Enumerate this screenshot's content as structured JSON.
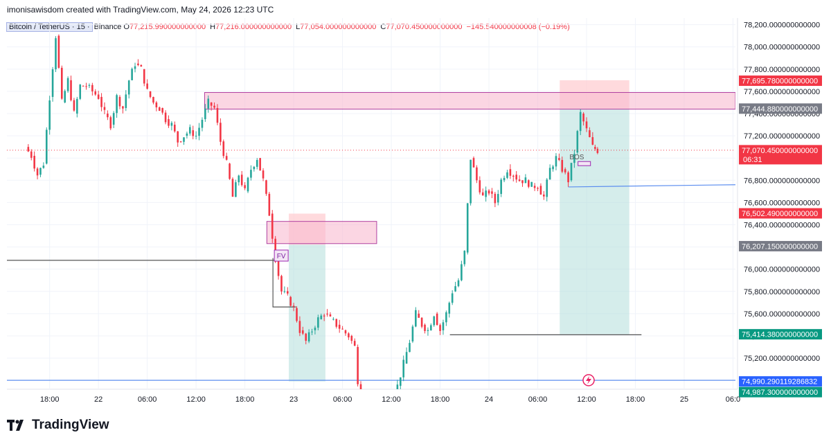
{
  "header": {
    "text": "imonisawisdom created with TradingView.com, May 24, 2026 12:23 UTC"
  },
  "legend": {
    "symbol": "Bitcoin / TetherUS · 15 ·",
    "exchange": "Binance",
    "open_label": "O",
    "open": "77,215.990000000000",
    "high_label": "H",
    "high": "77,216.000000000000",
    "low_label": "L",
    "low": "77,054.000000000000",
    "close_label": "C",
    "close": "77,070.450000000000",
    "change": "−145.540000000008 (−0.19%)"
  },
  "logo": {
    "text": "TradingView"
  },
  "colors": {
    "up": "#26a69a",
    "down": "#f23645",
    "supply_zone": "#f8bbd0",
    "profit_zone": "#b2dfdb",
    "loss_zone": "#ffcdd2",
    "blue_line": "#5b8def",
    "grid": "#f0f3fa"
  },
  "chart_data": {
    "type": "candlestick",
    "symbol": "Bitcoin / TetherUS",
    "interval": "15",
    "ylim": [
      74920,
      78260
    ],
    "y_ticks": [
      {
        "v": 78200,
        "label": "78,200.000000000000"
      },
      {
        "v": 78000,
        "label": "78,000.000000000000"
      },
      {
        "v": 77800,
        "label": "77,800.000000000000"
      },
      {
        "v": 77600,
        "label": "77,600.000000000000"
      },
      {
        "v": 77400,
        "label": "77,400.000000000000"
      },
      {
        "v": 77200,
        "label": "77,200.000000000000"
      },
      {
        "v": 77000,
        "label": "77,000.000000000000"
      },
      {
        "v": 76800,
        "label": "76,800.000000000000"
      },
      {
        "v": 76600,
        "label": "76,600.000000000000"
      },
      {
        "v": 76400,
        "label": "76,400.000000000000"
      },
      {
        "v": 76200,
        "label": "76,200.000000000000"
      },
      {
        "v": 76000,
        "label": "76,000.000000000000"
      },
      {
        "v": 75800,
        "label": "75,800.000000000000"
      },
      {
        "v": 75600,
        "label": "75,600.000000000000"
      },
      {
        "v": 75400,
        "label": "75,400.000000000000"
      },
      {
        "v": 75200,
        "label": "75,200.000000000000"
      }
    ],
    "x_ticks": [
      {
        "t": 2,
        "label": "18:00"
      },
      {
        "t": 6,
        "label": "22"
      },
      {
        "t": 10,
        "label": "06:00"
      },
      {
        "t": 14,
        "label": "12:00"
      },
      {
        "t": 18,
        "label": "18:00"
      },
      {
        "t": 22,
        "label": "23"
      },
      {
        "t": 26,
        "label": "06:00"
      },
      {
        "t": 30,
        "label": "12:00"
      },
      {
        "t": 34,
        "label": "18:00"
      },
      {
        "t": 38,
        "label": "24"
      },
      {
        "t": 42,
        "label": "06:00"
      },
      {
        "t": 46,
        "label": "12:00"
      },
      {
        "t": 50,
        "label": "18:00"
      },
      {
        "t": 54,
        "label": "25"
      },
      {
        "t": 58,
        "label": "06:0"
      }
    ],
    "x_range_hours": [
      -1.5,
      58.2
    ],
    "price_path": [
      [
        0,
        77100
      ],
      [
        0.5,
        77020
      ],
      [
        1,
        76850
      ],
      [
        1.5,
        76950
      ],
      [
        2,
        77550
      ],
      [
        2.5,
        78100
      ],
      [
        3,
        77500
      ],
      [
        3.5,
        77700
      ],
      [
        4,
        77400
      ],
      [
        4.5,
        77650
      ],
      [
        5,
        77650
      ],
      [
        5.5,
        77600
      ],
      [
        6,
        77550
      ],
      [
        6.5,
        77400
      ],
      [
        7,
        77300
      ],
      [
        7.5,
        77550
      ],
      [
        8,
        77450
      ],
      [
        8.5,
        77700
      ],
      [
        9,
        77850
      ],
      [
        9.5,
        77800
      ],
      [
        10,
        77600
      ],
      [
        10.5,
        77500
      ],
      [
        11,
        77450
      ],
      [
        11.5,
        77350
      ],
      [
        12,
        77300
      ],
      [
        12.5,
        77150
      ],
      [
        13,
        77200
      ],
      [
        13.5,
        77250
      ],
      [
        14,
        77200
      ],
      [
        14.5,
        77350
      ],
      [
        15,
        77500
      ],
      [
        15.5,
        77450
      ],
      [
        16,
        77150
      ],
      [
        16.5,
        76950
      ],
      [
        17,
        76650
      ],
      [
        17.5,
        76850
      ],
      [
        18,
        76700
      ],
      [
        18.5,
        76900
      ],
      [
        19,
        77000
      ],
      [
        19.5,
        76800
      ],
      [
        20,
        76500
      ],
      [
        20.5,
        76100
      ],
      [
        21,
        75800
      ],
      [
        21.5,
        75750
      ],
      [
        22,
        75650
      ],
      [
        22.5,
        75450
      ],
      [
        23,
        75350
      ],
      [
        23.5,
        75450
      ],
      [
        24,
        75550
      ],
      [
        24.5,
        75600
      ],
      [
        25,
        75550
      ],
      [
        25.5,
        75500
      ],
      [
        26,
        75450
      ],
      [
        26.5,
        75400
      ],
      [
        27,
        75300
      ],
      [
        27.5,
        74700
      ],
      [
        30,
        74750
      ],
      [
        30.5,
        74950
      ],
      [
        31,
        75150
      ],
      [
        31.5,
        75350
      ],
      [
        32,
        75600
      ],
      [
        32.5,
        75500
      ],
      [
        33,
        75450
      ],
      [
        33.5,
        75600
      ],
      [
        34,
        75450
      ],
      [
        34.5,
        75600
      ],
      [
        35,
        75800
      ],
      [
        35.5,
        75900
      ],
      [
        36,
        76150
      ],
      [
        36.5,
        77000
      ],
      [
        37,
        76800
      ],
      [
        37.5,
        76650
      ],
      [
        38,
        76700
      ],
      [
        38.5,
        76600
      ],
      [
        39,
        76800
      ],
      [
        39.5,
        76900
      ],
      [
        40,
        76850
      ],
      [
        40.5,
        76800
      ],
      [
        41,
        76800
      ],
      [
        41.5,
        76750
      ],
      [
        42,
        76750
      ],
      [
        42.5,
        76650
      ],
      [
        43,
        76900
      ],
      [
        43.5,
        77000
      ],
      [
        44,
        76900
      ],
      [
        44.5,
        76800
      ],
      [
        45,
        77050
      ],
      [
        45.5,
        77400
      ],
      [
        46,
        77250
      ],
      [
        46.5,
        77100
      ],
      [
        46.9,
        77070
      ]
    ],
    "last_price": 77070.45,
    "overlays": {
      "supply_zone_1": {
        "t0": 14.7,
        "t1": 58.2,
        "y0": 77440,
        "y1": 77590
      },
      "supply_zone_2": {
        "t0": 19.8,
        "t1": 28.8,
        "y0": 76230,
        "y1": 76430
      },
      "position_1": {
        "t0": 21.6,
        "t1": 24.6,
        "entry": 76220,
        "stop": 76500,
        "target": 74990
      },
      "position_2": {
        "t0": 43.8,
        "t1": 49.5,
        "entry": 77445,
        "stop": 77700,
        "target": 75415
      },
      "fvg_label": "FV",
      "bos_label": "BOS",
      "line_1": {
        "t0": -1.5,
        "t1": 21.2,
        "v": 76080
      },
      "line_2": {
        "t0": 34.8,
        "t1": 50.5,
        "v": 75410
      },
      "line_blue_h": {
        "t0": -1.5,
        "t1": 58.2,
        "v": 75000
      },
      "line_blue_tr": {
        "t0": 44.5,
        "t1": 58.2,
        "v0": 76740,
        "v1": 76760
      },
      "box_fvg": {
        "t0": 20.3,
        "t1": 22.2,
        "y0": 75660,
        "y1": 76100
      }
    }
  },
  "price_labels": [
    {
      "value": 77695.78,
      "text": "77,695.780000000000",
      "bg": "#f23645",
      "fg": "#ffffff"
    },
    {
      "value": 77444.88,
      "text": "77,444.880000000000",
      "bg": "#787b86",
      "fg": "#ffffff"
    },
    {
      "value": 77070.45,
      "text": "77,070.450000000000",
      "sub": "06:31",
      "bg": "#f23645",
      "fg": "#ffffff"
    },
    {
      "value": 76502.49,
      "text": "76,502.490000000000",
      "bg": "#f23645",
      "fg": "#ffffff"
    },
    {
      "value": 76207.15,
      "text": "76,207.150000000000",
      "bg": "#787b86",
      "fg": "#ffffff"
    },
    {
      "value": 75414.38,
      "text": "75,414.380000000000",
      "bg": "#089981",
      "fg": "#ffffff"
    },
    {
      "value": 74990.29011928683,
      "text": "74,990.290119286832",
      "bg": "#2962ff",
      "fg": "#ffffff"
    },
    {
      "value": 74987.3,
      "text": "74,987.300000000000",
      "bg": "#089981",
      "fg": "#ffffff"
    }
  ]
}
